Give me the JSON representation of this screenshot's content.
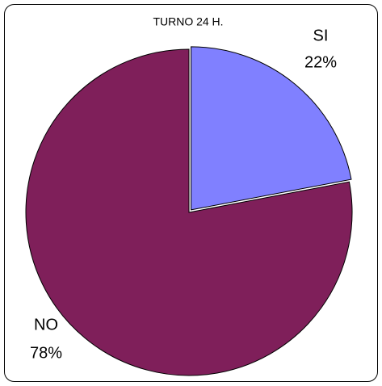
{
  "chart_data": {
    "type": "pie",
    "title": "TURNO 24 H.",
    "categories": [
      "SI",
      "NO"
    ],
    "values": [
      22,
      78
    ],
    "value_labels": [
      "22%",
      "78%"
    ],
    "colors": [
      "#8080ff",
      "#7f1f5a"
    ]
  }
}
